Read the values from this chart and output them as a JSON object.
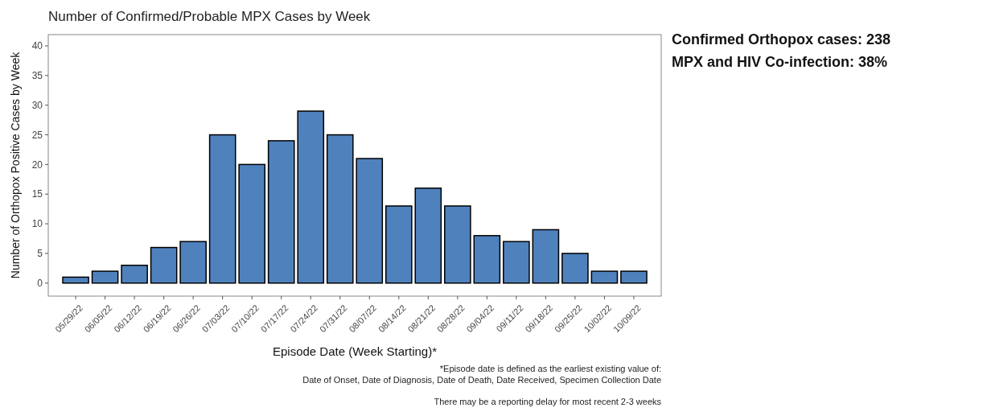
{
  "chart_data": {
    "type": "bar",
    "title": "Number of Confirmed/Probable MPX Cases by Week",
    "xlabel": "Episode Date (Week Starting)*",
    "ylabel": "Number of Orthopox Positive Cases by Week",
    "categories": [
      "05/29/22",
      "06/05/22",
      "06/12/22",
      "06/19/22",
      "06/26/22",
      "07/03/22",
      "07/10/22",
      "07/17/22",
      "07/24/22",
      "07/31/22",
      "08/07/22",
      "08/14/22",
      "08/21/22",
      "08/28/22",
      "09/04/22",
      "09/11/22",
      "09/18/22",
      "09/25/22",
      "10/02/22",
      "10/09/22"
    ],
    "values": [
      1,
      2,
      3,
      6,
      7,
      25,
      20,
      24,
      29,
      25,
      21,
      13,
      16,
      13,
      8,
      7,
      9,
      5,
      2,
      2
    ],
    "color": "#4f81bd",
    "ylim": [
      -2.2,
      41.9
    ],
    "yticks": [
      0,
      5,
      10,
      15,
      20,
      25,
      30,
      35,
      40
    ],
    "grid": false,
    "annotations": [
      "Confirmed Orthopox cases: 238",
      "MPX and HIV Co-infection: 38%",
      "*Episode date is defined as the earliest existing value of:\nDate of Onset, Date of Diagnosis, Date of Death, Date Received, Specimen Collection Date",
      "There may be a reporting delay for most recent 2-3 weeks"
    ]
  }
}
